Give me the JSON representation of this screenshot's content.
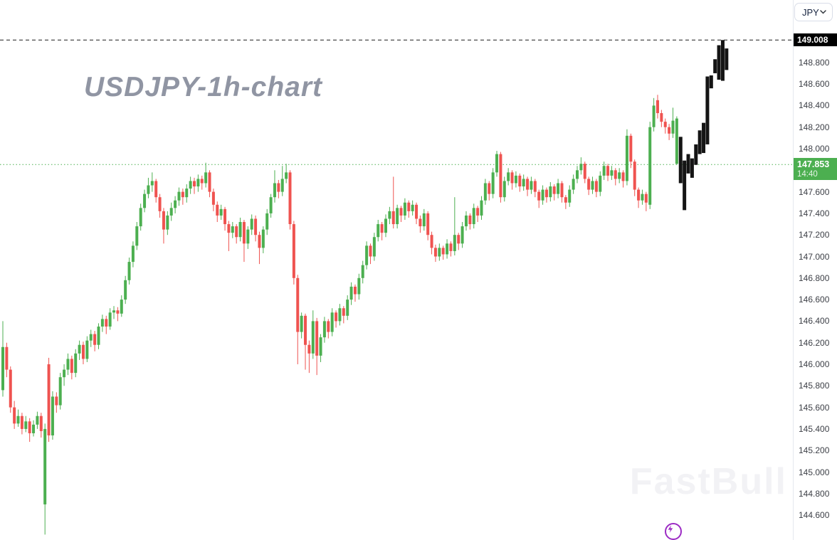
{
  "header": {
    "symbol_select": {
      "value": "JPY"
    }
  },
  "chart": {
    "title": "USDJPY-1h-chart",
    "watermark": "FastBull",
    "high_line": {
      "price": "149.008"
    },
    "current_line": {
      "price": "147.853",
      "time": "14:40"
    },
    "colors": {
      "up": "#4caf50",
      "down": "#ef5350",
      "recent": "#141414",
      "high_line": "#1b1b1b",
      "current_line": "#4caf50",
      "tag_high_bg": "#000000",
      "tag_current_bg": "#4caf50",
      "accent_flash": "#9c2bc4"
    }
  },
  "y_axis": {
    "labels": [
      "148.800",
      "148.600",
      "148.400",
      "148.200",
      "148.000",
      "147.600",
      "147.400",
      "147.200",
      "147.000",
      "146.800",
      "146.600",
      "146.400",
      "146.200",
      "146.000",
      "145.800",
      "145.600",
      "145.400",
      "145.200",
      "145.000",
      "144.800",
      "144.600"
    ]
  },
  "chart_data": {
    "type": "candlestick",
    "symbol": "USDJPY",
    "timeframe": "1h",
    "title": "USDJPY-1h-chart",
    "ylim": [
      144.4,
      149.05
    ],
    "grid": "off",
    "high_marker": 149.008,
    "last_price": 147.853,
    "last_time": "14:40",
    "ohlc": [
      [
        145.76,
        146.4,
        145.7,
        146.16
      ],
      [
        146.16,
        146.2,
        145.88,
        145.95
      ],
      [
        145.95,
        145.98,
        145.55,
        145.6
      ],
      [
        145.6,
        145.66,
        145.4,
        145.45
      ],
      [
        145.45,
        145.58,
        145.42,
        145.52
      ],
      [
        145.52,
        145.55,
        145.35,
        145.4
      ],
      [
        145.4,
        145.52,
        145.37,
        145.47
      ],
      [
        145.47,
        145.5,
        145.28,
        145.36
      ],
      [
        145.36,
        145.48,
        145.33,
        145.44
      ],
      [
        145.44,
        145.56,
        145.4,
        145.52
      ],
      [
        145.52,
        145.55,
        145.32,
        145.38
      ],
      [
        144.7,
        145.45,
        144.42,
        145.4
      ],
      [
        146.0,
        146.06,
        145.28,
        145.34
      ],
      [
        145.34,
        145.75,
        145.3,
        145.7
      ],
      [
        145.7,
        145.74,
        145.55,
        145.62
      ],
      [
        145.62,
        145.92,
        145.58,
        145.88
      ],
      [
        145.88,
        146.0,
        145.8,
        145.95
      ],
      [
        145.95,
        146.1,
        145.9,
        146.05
      ],
      [
        146.05,
        146.08,
        145.86,
        145.92
      ],
      [
        145.92,
        146.14,
        145.88,
        146.1
      ],
      [
        146.1,
        146.22,
        146.04,
        146.18
      ],
      [
        146.18,
        146.21,
        146.0,
        146.05
      ],
      [
        146.05,
        146.26,
        146.02,
        146.22
      ],
      [
        146.22,
        146.32,
        146.16,
        146.28
      ],
      [
        146.28,
        146.31,
        146.12,
        146.18
      ],
      [
        146.18,
        146.38,
        146.14,
        146.35
      ],
      [
        146.35,
        146.46,
        146.3,
        146.42
      ],
      [
        146.42,
        146.45,
        146.28,
        146.35
      ],
      [
        146.35,
        146.52,
        146.32,
        146.48
      ],
      [
        146.48,
        146.54,
        146.42,
        146.5
      ],
      [
        146.5,
        146.53,
        146.4,
        146.47
      ],
      [
        146.47,
        146.64,
        146.44,
        146.6
      ],
      [
        146.6,
        146.82,
        146.56,
        146.78
      ],
      [
        146.78,
        146.99,
        146.74,
        146.95
      ],
      [
        146.95,
        147.14,
        146.9,
        147.1
      ],
      [
        147.1,
        147.32,
        147.06,
        147.28
      ],
      [
        147.28,
        147.49,
        147.24,
        147.45
      ],
      [
        147.45,
        147.62,
        147.41,
        147.58
      ],
      [
        147.58,
        147.73,
        147.54,
        147.66
      ],
      [
        147.66,
        147.78,
        147.6,
        147.7
      ],
      [
        147.7,
        147.72,
        147.5,
        147.55
      ],
      [
        147.55,
        147.58,
        147.36,
        147.42
      ],
      [
        147.42,
        147.45,
        147.12,
        147.25
      ],
      [
        147.25,
        147.42,
        147.2,
        147.38
      ],
      [
        147.38,
        147.5,
        147.33,
        147.45
      ],
      [
        147.45,
        147.56,
        147.4,
        147.52
      ],
      [
        147.52,
        147.64,
        147.47,
        147.6
      ],
      [
        147.6,
        147.63,
        147.48,
        147.55
      ],
      [
        147.55,
        147.67,
        147.5,
        147.63
      ],
      [
        147.63,
        147.74,
        147.58,
        147.7
      ],
      [
        147.7,
        147.73,
        147.58,
        147.65
      ],
      [
        147.65,
        147.76,
        147.6,
        147.72
      ],
      [
        147.72,
        147.75,
        147.62,
        147.68
      ],
      [
        147.68,
        147.87,
        147.64,
        147.78
      ],
      [
        147.78,
        147.8,
        147.55,
        147.6
      ],
      [
        147.6,
        147.63,
        147.42,
        147.48
      ],
      [
        147.48,
        147.51,
        147.32,
        147.38
      ],
      [
        147.38,
        147.48,
        147.34,
        147.44
      ],
      [
        147.44,
        147.46,
        147.24,
        147.3
      ],
      [
        147.3,
        147.33,
        147.05,
        147.22
      ],
      [
        147.22,
        147.32,
        147.17,
        147.28
      ],
      [
        147.28,
        147.3,
        147.12,
        147.18
      ],
      [
        147.18,
        147.36,
        147.14,
        147.32
      ],
      [
        147.32,
        147.34,
        146.95,
        147.12
      ],
      [
        147.12,
        147.28,
        147.07,
        147.25
      ],
      [
        147.25,
        147.39,
        147.2,
        147.35
      ],
      [
        147.35,
        147.38,
        147.14,
        147.2
      ],
      [
        147.2,
        147.23,
        146.93,
        147.08
      ],
      [
        147.08,
        147.28,
        147.03,
        147.25
      ],
      [
        147.25,
        147.44,
        147.2,
        147.4
      ],
      [
        147.4,
        147.58,
        147.36,
        147.55
      ],
      [
        147.55,
        147.8,
        147.5,
        147.68
      ],
      [
        147.68,
        147.71,
        147.54,
        147.6
      ],
      [
        147.6,
        147.84,
        147.56,
        147.72
      ],
      [
        147.72,
        147.86,
        147.68,
        147.78
      ],
      [
        147.78,
        147.8,
        147.25,
        147.3
      ],
      [
        147.3,
        147.33,
        146.74,
        146.8
      ],
      [
        146.8,
        146.83,
        146.0,
        146.3
      ],
      [
        146.3,
        146.48,
        146.24,
        146.45
      ],
      [
        146.45,
        146.47,
        145.95,
        146.18
      ],
      [
        146.18,
        146.22,
        145.92,
        146.1
      ],
      [
        146.1,
        146.5,
        146.05,
        146.4
      ],
      [
        146.4,
        146.43,
        145.9,
        146.08
      ],
      [
        146.08,
        146.28,
        146.02,
        146.25
      ],
      [
        146.25,
        146.44,
        146.2,
        146.4
      ],
      [
        146.4,
        146.42,
        146.24,
        146.3
      ],
      [
        146.3,
        146.52,
        146.26,
        146.48
      ],
      [
        146.48,
        146.5,
        146.34,
        146.4
      ],
      [
        146.4,
        146.56,
        146.36,
        146.52
      ],
      [
        146.52,
        146.54,
        146.38,
        146.45
      ],
      [
        146.45,
        146.64,
        146.41,
        146.6
      ],
      [
        146.6,
        146.76,
        146.55,
        146.72
      ],
      [
        146.72,
        146.74,
        146.58,
        146.65
      ],
      [
        146.65,
        146.84,
        146.6,
        146.8
      ],
      [
        146.8,
        146.96,
        146.75,
        146.92
      ],
      [
        146.92,
        147.14,
        146.88,
        147.1
      ],
      [
        147.1,
        147.12,
        146.93,
        147.0
      ],
      [
        147.0,
        147.22,
        146.96,
        147.18
      ],
      [
        147.18,
        147.34,
        147.14,
        147.3
      ],
      [
        147.3,
        147.32,
        147.15,
        147.22
      ],
      [
        147.22,
        147.39,
        147.18,
        147.35
      ],
      [
        147.35,
        147.46,
        147.3,
        147.42
      ],
      [
        147.42,
        147.74,
        147.26,
        147.3
      ],
      [
        147.3,
        147.48,
        147.26,
        147.45
      ],
      [
        147.45,
        147.47,
        147.32,
        147.38
      ],
      [
        147.38,
        147.54,
        147.34,
        147.5
      ],
      [
        147.5,
        147.52,
        147.36,
        147.42
      ],
      [
        147.42,
        147.52,
        147.38,
        147.48
      ],
      [
        147.48,
        147.5,
        147.3,
        147.35
      ],
      [
        147.35,
        147.38,
        147.22,
        147.28
      ],
      [
        147.28,
        147.44,
        147.24,
        147.4
      ],
      [
        147.4,
        147.42,
        147.15,
        147.2
      ],
      [
        147.2,
        147.23,
        147.02,
        147.08
      ],
      [
        147.08,
        147.11,
        146.95,
        147.0
      ],
      [
        147.0,
        147.12,
        146.96,
        147.08
      ],
      [
        147.08,
        147.1,
        146.97,
        147.02
      ],
      [
        147.02,
        147.16,
        146.98,
        147.12
      ],
      [
        147.12,
        147.14,
        147.0,
        147.05
      ],
      [
        147.05,
        147.55,
        147.01,
        147.2
      ],
      [
        147.2,
        147.22,
        147.06,
        147.12
      ],
      [
        147.12,
        147.32,
        147.08,
        147.28
      ],
      [
        147.28,
        147.42,
        147.24,
        147.38
      ],
      [
        147.38,
        147.4,
        147.25,
        147.3
      ],
      [
        147.3,
        147.49,
        147.26,
        147.45
      ],
      [
        147.45,
        147.47,
        147.32,
        147.38
      ],
      [
        147.38,
        147.56,
        147.34,
        147.52
      ],
      [
        147.52,
        147.72,
        147.48,
        147.68
      ],
      [
        147.68,
        147.7,
        147.52,
        147.58
      ],
      [
        147.58,
        147.82,
        147.54,
        147.78
      ],
      [
        147.78,
        147.98,
        147.74,
        147.95
      ],
      [
        147.95,
        147.97,
        147.5,
        147.55
      ],
      [
        147.55,
        147.74,
        147.51,
        147.7
      ],
      [
        147.7,
        147.82,
        147.66,
        147.78
      ],
      [
        147.78,
        147.8,
        147.62,
        147.68
      ],
      [
        147.68,
        147.79,
        147.64,
        147.75
      ],
      [
        147.75,
        147.77,
        147.6,
        147.65
      ],
      [
        147.65,
        147.76,
        147.61,
        147.72
      ],
      [
        147.72,
        147.74,
        147.56,
        147.62
      ],
      [
        147.62,
        147.74,
        147.58,
        147.7
      ],
      [
        147.7,
        147.72,
        147.55,
        147.6
      ],
      [
        147.6,
        147.62,
        147.45,
        147.52
      ],
      [
        147.52,
        147.66,
        147.48,
        147.62
      ],
      [
        147.62,
        147.64,
        147.5,
        147.55
      ],
      [
        147.55,
        147.69,
        147.51,
        147.65
      ],
      [
        147.65,
        147.67,
        147.52,
        147.58
      ],
      [
        147.58,
        147.72,
        147.54,
        147.68
      ],
      [
        147.68,
        147.7,
        147.5,
        147.55
      ],
      [
        147.55,
        147.57,
        147.44,
        147.5
      ],
      [
        147.5,
        147.66,
        147.46,
        147.62
      ],
      [
        147.62,
        147.76,
        147.58,
        147.72
      ],
      [
        147.72,
        147.84,
        147.68,
        147.8
      ],
      [
        147.8,
        147.92,
        147.76,
        147.86
      ],
      [
        147.86,
        147.88,
        147.68,
        147.72
      ],
      [
        147.72,
        147.74,
        147.57,
        147.62
      ],
      [
        147.62,
        147.74,
        147.58,
        147.7
      ],
      [
        147.7,
        147.72,
        147.55,
        147.6
      ],
      [
        147.6,
        147.79,
        147.56,
        147.75
      ],
      [
        147.75,
        147.88,
        147.71,
        147.84
      ],
      [
        147.84,
        147.86,
        147.7,
        147.75
      ],
      [
        147.75,
        147.84,
        147.71,
        147.8
      ],
      [
        147.8,
        147.82,
        147.66,
        147.72
      ],
      [
        147.72,
        147.82,
        147.68,
        147.78
      ],
      [
        147.78,
        147.8,
        147.64,
        147.7
      ],
      [
        147.7,
        148.18,
        147.66,
        148.12
      ],
      [
        148.12,
        148.14,
        147.82,
        147.88
      ],
      [
        147.88,
        147.9,
        147.56,
        147.62
      ],
      [
        147.62,
        147.64,
        147.45,
        147.52
      ],
      [
        147.52,
        147.62,
        147.48,
        147.58
      ],
      [
        147.58,
        147.6,
        147.42,
        147.5
      ],
      [
        147.48,
        148.25,
        147.44,
        148.2
      ],
      [
        148.2,
        148.47,
        148.16,
        148.4
      ],
      [
        148.45,
        148.5,
        148.28,
        148.33
      ],
      [
        148.33,
        148.36,
        148.2,
        148.25
      ],
      [
        148.25,
        148.28,
        148.14,
        148.2
      ],
      [
        148.2,
        148.23,
        148.08,
        148.14
      ],
      [
        148.14,
        148.38,
        148.1,
        148.26
      ],
      [
        147.86,
        148.3,
        147.85,
        148.28
      ]
    ],
    "recent_black_bars": [
      [
        148.11,
        147.68
      ],
      [
        147.89,
        147.43
      ],
      [
        147.95,
        147.77
      ],
      [
        147.91,
        147.73
      ],
      [
        148.04,
        147.85
      ],
      [
        148.17,
        147.95
      ],
      [
        148.24,
        147.96
      ],
      [
        148.67,
        148.04
      ],
      [
        148.68,
        148.56
      ],
      [
        148.83,
        148.7
      ],
      [
        148.96,
        148.64
      ],
      [
        149.008,
        148.63
      ],
      [
        148.93,
        148.73
      ]
    ]
  }
}
